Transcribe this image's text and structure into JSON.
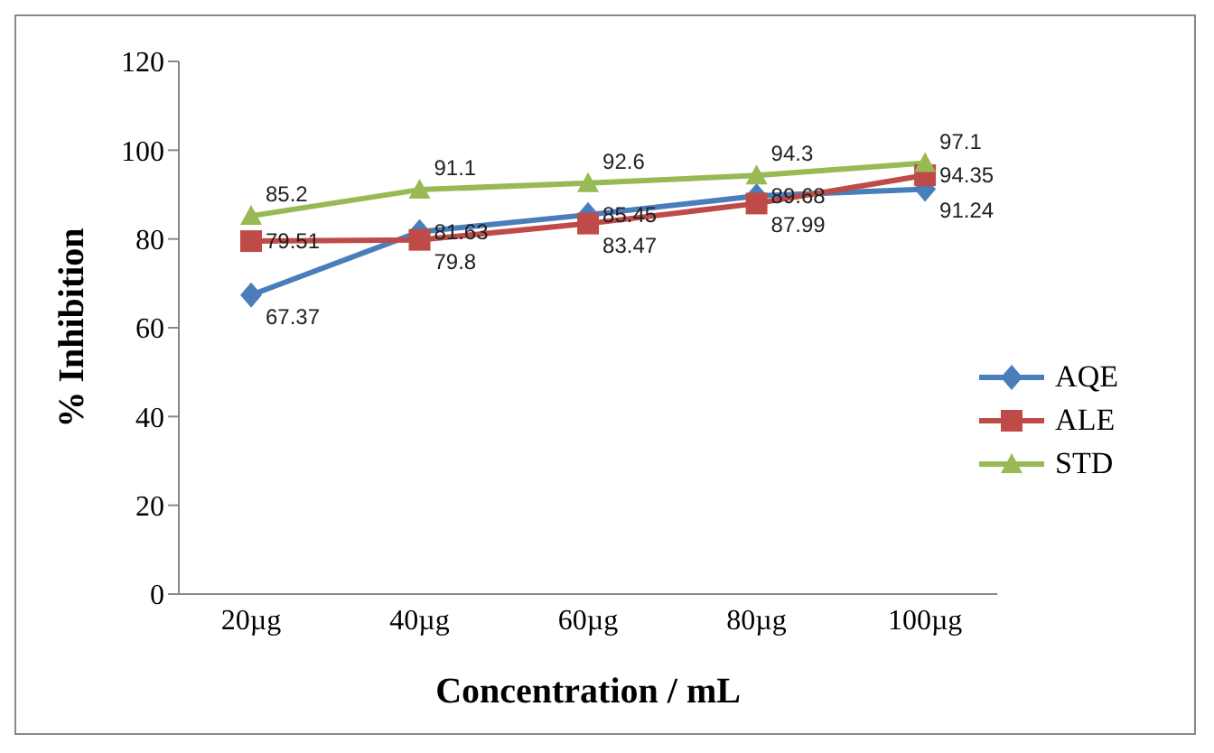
{
  "chart_data": {
    "type": "line",
    "xlabel": "Concentration / mL",
    "ylabel": "% Inhibition",
    "categories": [
      "20µg",
      "40µg",
      "60µg",
      "80µg",
      "100µg"
    ],
    "series": [
      {
        "name": "AQE",
        "color": "#4a7ebb",
        "marker": "diamond",
        "values": [
          67.37,
          81.63,
          85.45,
          89.68,
          91.24
        ]
      },
      {
        "name": "ALE",
        "color": "#be4b48",
        "marker": "square",
        "values": [
          79.51,
          79.8,
          83.47,
          87.99,
          94.35
        ]
      },
      {
        "name": "STD",
        "color": "#98b954",
        "marker": "triangle",
        "values": [
          85.2,
          91.1,
          92.6,
          94.3,
          97.1
        ]
      }
    ],
    "ylim": [
      0,
      120
    ],
    "yticks": [
      0,
      20,
      40,
      60,
      80,
      100,
      120
    ],
    "legend": "right",
    "data_labels": true
  }
}
